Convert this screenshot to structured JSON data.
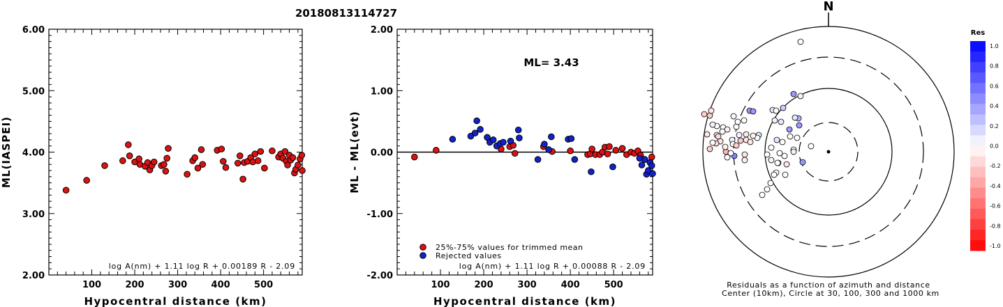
{
  "title": "20180813114727",
  "chart_data": [
    {
      "type": "scatter",
      "ylabel": "ML(IASPEI)",
      "xlabel": "Hypocentral distance (km)",
      "xlim": [
        0,
        590
      ],
      "ylim": [
        2.0,
        6.0
      ],
      "xticks": [
        100,
        200,
        300,
        400,
        500
      ],
      "yticks": [
        "2.00",
        "3.00",
        "4.00",
        "5.00",
        "6.00"
      ],
      "formula": "log A(nm) + 1.11 log R + 0.00189 R - 2.09",
      "point_color": "#dd1111",
      "points": [
        [
          40,
          3.38
        ],
        [
          88,
          3.54
        ],
        [
          130,
          3.78
        ],
        [
          172,
          3.86
        ],
        [
          185,
          4.12
        ],
        [
          188,
          3.94
        ],
        [
          200,
          3.84
        ],
        [
          210,
          3.89
        ],
        [
          212,
          3.8
        ],
        [
          224,
          3.77
        ],
        [
          230,
          3.83
        ],
        [
          235,
          3.71
        ],
        [
          240,
          3.78
        ],
        [
          245,
          3.84
        ],
        [
          262,
          3.78
        ],
        [
          268,
          3.8
        ],
        [
          272,
          3.69
        ],
        [
          275,
          3.9
        ],
        [
          278,
          4.06
        ],
        [
          322,
          3.64
        ],
        [
          335,
          3.86
        ],
        [
          340,
          3.91
        ],
        [
          347,
          3.74
        ],
        [
          355,
          4.04
        ],
        [
          358,
          3.8
        ],
        [
          392,
          4.03
        ],
        [
          402,
          4.05
        ],
        [
          406,
          3.85
        ],
        [
          412,
          3.75
        ],
        [
          440,
          3.82
        ],
        [
          445,
          3.94
        ],
        [
          452,
          3.56
        ],
        [
          455,
          3.83
        ],
        [
          463,
          3.85
        ],
        [
          470,
          3.91
        ],
        [
          475,
          3.84
        ],
        [
          480,
          3.97
        ],
        [
          487,
          3.86
        ],
        [
          493,
          4.01
        ],
        [
          502,
          3.74
        ],
        [
          520,
          4.02
        ],
        [
          535,
          3.92
        ],
        [
          540,
          3.97
        ],
        [
          545,
          3.9
        ],
        [
          550,
          4.01
        ],
        [
          553,
          3.85
        ],
        [
          556,
          3.79
        ],
        [
          560,
          3.95
        ],
        [
          563,
          3.87
        ],
        [
          568,
          3.91
        ],
        [
          572,
          3.66
        ],
        [
          575,
          3.72
        ],
        [
          580,
          3.79
        ],
        [
          585,
          3.89
        ],
        [
          589,
          3.95
        ],
        [
          590,
          3.7
        ]
      ]
    },
    {
      "type": "scatter",
      "ylabel": "ML - ML(evt)",
      "xlabel": "Hypocentral distance (km)",
      "xlim": [
        0,
        590
      ],
      "ylim": [
        -2.0,
        2.0
      ],
      "xticks": [
        100,
        200,
        300,
        400,
        500
      ],
      "yticks": [
        "-2.00",
        "-1.00",
        "0.00",
        "1.00",
        "2.00"
      ],
      "annotation": "ML= 3.43",
      "formula": "log A(nm) + 1.11 log R + 0.00088 R - 2.09",
      "legend": [
        {
          "label": "25%-75% values for trimmed mean",
          "color": "#dd1111"
        },
        {
          "label": "Rejected values",
          "color": "#1122cc"
        }
      ],
      "series": [
        {
          "color": "#dd1111",
          "points": [
            [
              40,
              -0.08
            ],
            [
              90,
              0.03
            ],
            [
              240,
              0.05
            ],
            [
              260,
              0.09
            ],
            [
              268,
              0.11
            ],
            [
              272,
              -0.02
            ],
            [
              338,
              0.09
            ],
            [
              358,
              0.01
            ],
            [
              400,
              0.02
            ],
            [
              440,
              -0.04
            ],
            [
              446,
              -0.03
            ],
            [
              450,
              0.05
            ],
            [
              458,
              -0.04
            ],
            [
              468,
              -0.04
            ],
            [
              474,
              0.0
            ],
            [
              480,
              0.08
            ],
            [
              486,
              -0.03
            ],
            [
              490,
              0.09
            ],
            [
              505,
              0.03
            ],
            [
              520,
              0.06
            ],
            [
              530,
              -0.04
            ],
            [
              540,
              0.0
            ],
            [
              548,
              -0.02
            ],
            [
              556,
              0.02
            ],
            [
              562,
              -0.05
            ],
            [
              572,
              -0.12
            ],
            [
              588,
              -0.08
            ]
          ]
        },
        {
          "color": "#1122cc",
          "points": [
            [
              128,
              0.21
            ],
            [
              170,
              0.26
            ],
            [
              180,
              0.31
            ],
            [
              184,
              0.51
            ],
            [
              192,
              0.37
            ],
            [
              208,
              0.24
            ],
            [
              214,
              0.16
            ],
            [
              222,
              0.2
            ],
            [
              230,
              0.1
            ],
            [
              238,
              0.14
            ],
            [
              245,
              0.16
            ],
            [
              262,
              0.18
            ],
            [
              280,
              0.36
            ],
            [
              282,
              0.23
            ],
            [
              325,
              -0.12
            ],
            [
              340,
              0.13
            ],
            [
              350,
              0.04
            ],
            [
              356,
              0.25
            ],
            [
              395,
              0.21
            ],
            [
              402,
              0.22
            ],
            [
              410,
              -0.12
            ],
            [
              448,
              -0.32
            ],
            [
              498,
              -0.24
            ],
            [
              560,
              -0.1
            ],
            [
              565,
              -0.21
            ],
            [
              572,
              -0.12
            ],
            [
              576,
              -0.36
            ],
            [
              580,
              -0.3
            ],
            [
              584,
              -0.17
            ],
            [
              588,
              -0.22
            ],
            [
              590,
              -0.35
            ]
          ]
        }
      ]
    },
    {
      "type": "polar-scatter",
      "north_label": "N",
      "caption_line1": "Residuals as a function of azimuth and distance",
      "caption_line2": "Center (10km), Circle at 30, 100, 300 and 1000 km",
      "colorbar": {
        "title": "Res",
        "ticks": [
          "1.0",
          "0.8",
          "0.6",
          "0.4",
          "0.2",
          "0.0",
          "-0.2",
          "-0.4",
          "-0.6",
          "-0.8",
          "-1.0"
        ],
        "max": 1.0,
        "min": -1.0
      },
      "points": [
        [
          -40,
          60,
          0.0
        ],
        [
          -25,
          210,
          0.0
        ],
        [
          -70,
          220,
          0.0
        ],
        [
          -75,
          248,
          0.0
        ],
        [
          -62,
          251,
          0.0
        ],
        [
          -88,
          272,
          0.0
        ],
        [
          -72,
          234,
          0.0
        ],
        [
          -40,
          138,
          0.05
        ],
        [
          -50,
          135,
          0.4
        ],
        [
          -65,
          155,
          0.2
        ],
        [
          -68,
          175,
          0.1
        ],
        [
          -82,
          212,
          0.0
        ],
        [
          -74,
          201,
          0.1
        ],
        [
          -88,
          222,
          0.0
        ],
        [
          -100,
          194,
          0.1
        ],
        [
          -95,
          280,
          0.0
        ],
        [
          -83,
          263,
          0.0
        ],
        [
          -78,
          251,
          0.0
        ],
        [
          -82,
          230,
          -0.05
        ],
        [
          -73,
          234,
          0.0
        ],
        [
          -63,
          224,
          0.0
        ],
        [
          -60,
          236,
          -0.1
        ],
        [
          -132,
          182,
          0.0
        ],
        [
          -138,
          201,
          0.05
        ],
        [
          -135,
          224,
          0.5
        ],
        [
          -128,
          194,
          0.05
        ],
        [
          -118,
          193,
          -0.1
        ],
        [
          -102,
          198,
          0.0
        ],
        [
          -151,
          183,
          0.0
        ],
        [
          -130,
          175,
          0.0
        ],
        [
          -113,
          159,
          0.4
        ],
        [
          -108,
          160,
          0.4
        ],
        [
          -121,
          173,
          0.0
        ],
        [
          -137,
          207,
          0.0
        ],
        [
          -147,
          218,
          -0.3
        ],
        [
          -140,
          220,
          0.0
        ],
        [
          -145,
          226,
          0.0
        ],
        [
          -170,
          214,
          -0.2
        ],
        [
          -170,
          166,
          -0.2
        ],
        [
          -178,
          164,
          -0.2
        ],
        [
          -168,
          159,
          -0.1
        ],
        [
          -174,
          193,
          -0.1
        ],
        [
          -160,
          194,
          -0.1
        ],
        [
          -155,
          203,
          -0.1
        ],
        [
          -145,
          186,
          -0.05
        ],
        [
          -136,
          167,
          -0.05
        ],
        [
          -132,
          209,
          -0.2
        ],
        [
          -126,
          202,
          -0.2
        ],
        [
          -152,
          189,
          0.0
        ],
        [
          -148,
          211,
          -0.05
        ],
        [
          -160,
          181,
          0.0
        ],
        [
          -166,
          179,
          0.05
        ],
        [
          -120,
          222,
          -0.1
        ],
        [
          -118,
          201,
          -0.1
        ],
        [
          -112,
          204,
          -0.1
        ],
        [
          -158,
          196,
          -0.15
        ],
        [
          -161,
          206,
          -0.15
        ],
        [
          -166,
          205,
          0.0
        ],
        [
          -120,
          230,
          0.05
        ],
        [
          -108,
          195,
          -0.05
        ],
        [
          -66,
          204,
          0.0
        ],
        [
          -55,
          196,
          0.0
        ],
        [
          -50,
          215,
          0.0
        ],
        [
          -45,
          198,
          0.0
        ],
        [
          -56,
          186,
          0.4
        ],
        [
          -50,
          218,
          0.05
        ],
        [
          -77,
          173,
          0.05
        ],
        [
          -37,
          233,
          0.4
        ],
        [
          -43,
          170,
          0.3
        ],
        [
          -48,
          169,
          0.1
        ],
        [
          -42,
          180,
          0.4
        ],
        [
          -80,
          158,
          0.1
        ],
        [
          -75,
          159,
          0.0
        ]
      ]
    }
  ]
}
